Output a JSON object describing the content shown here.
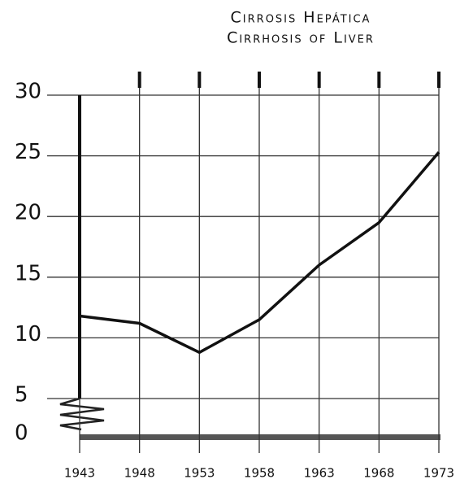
{
  "chart_data": {
    "type": "line",
    "title": "Cirrosis Hepática",
    "subtitle": "Cirrhosis of Liver",
    "x": [
      1943,
      1948,
      1953,
      1958,
      1963,
      1968,
      1973
    ],
    "series": [
      {
        "name": "Cirrhosis of Liver",
        "color": "#111111",
        "values": [
          11.8,
          11.2,
          8.8,
          11.5,
          16,
          19.5,
          25.3
        ]
      }
    ],
    "xlim": [
      1943,
      1973
    ],
    "xticks": [
      1943,
      1948,
      1953,
      1958,
      1963,
      1968,
      1973
    ],
    "ylim": [
      0,
      30
    ],
    "yticks": [
      0,
      5,
      10,
      15,
      20,
      25,
      30
    ],
    "grid": true
  }
}
